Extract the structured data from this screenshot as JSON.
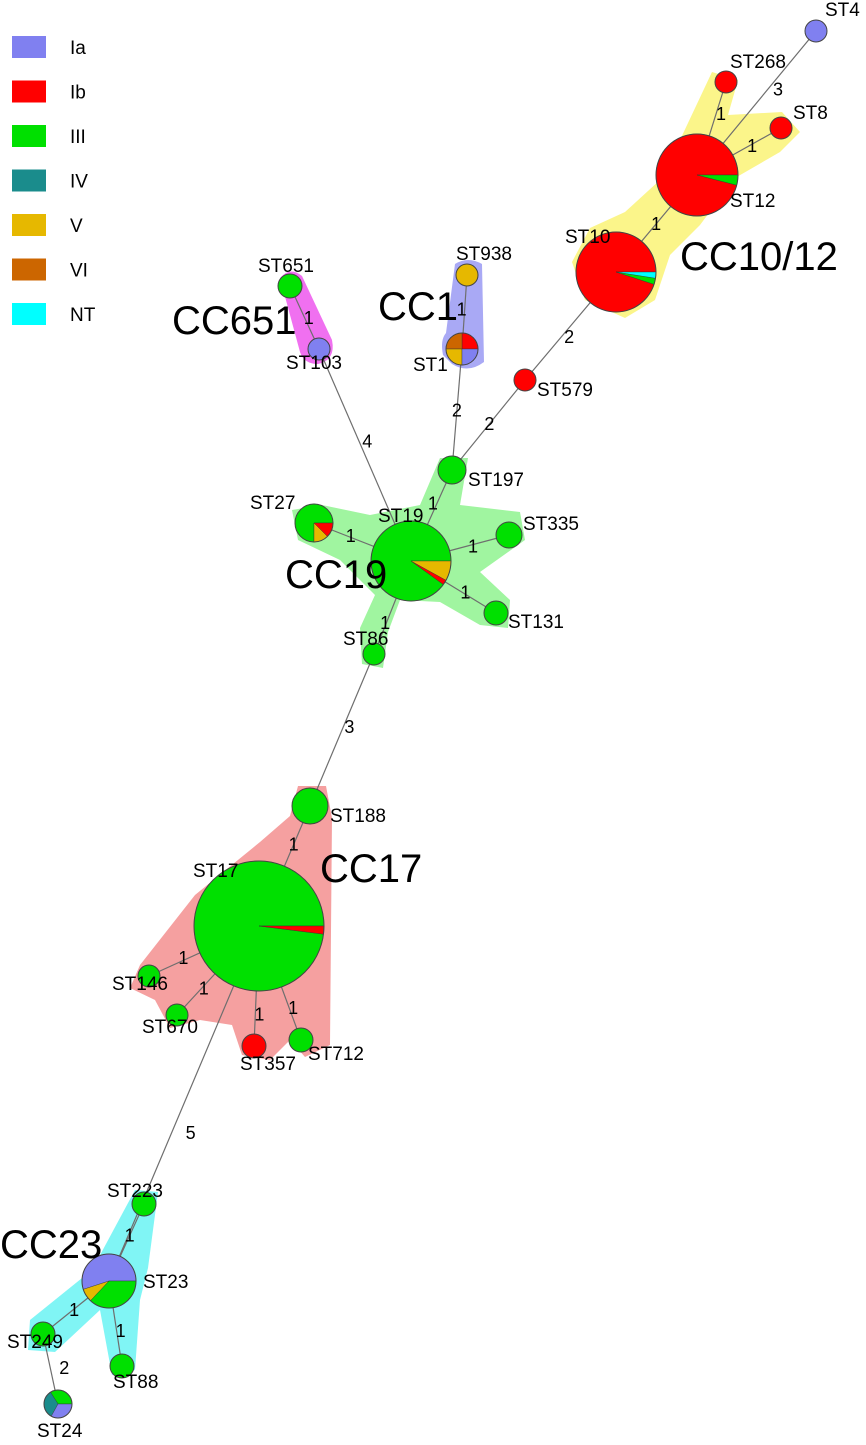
{
  "colors": {
    "Ia": "#8080f0",
    "Ib": "#ff0000",
    "III": "#00e000",
    "IV": "#1a8c8c",
    "V": "#e6b800",
    "VI": "#cc6600",
    "NT": "#00ffff",
    "hull_cc10_12": "#fbf58a",
    "hull_cc1": "#a9a9f5",
    "hull_cc651": "#f070f0",
    "hull_cc19": "#a0f5a0",
    "hull_cc17": "#f5a0a0",
    "hull_cc23": "#80f5f5"
  },
  "legend": {
    "items": [
      {
        "label": "Ia",
        "color": "#8080f0"
      },
      {
        "label": "Ib",
        "color": "#ff0000"
      },
      {
        "label": "III",
        "color": "#00e000"
      },
      {
        "label": "IV",
        "color": "#1a8c8c"
      },
      {
        "label": "V",
        "color": "#e6b800"
      },
      {
        "label": "VI",
        "color": "#cc6600"
      },
      {
        "label": "NT",
        "color": "#00ffff"
      }
    ]
  },
  "clonal_complexes": {
    "cc10_12": "CC10/12",
    "cc1": "CC1",
    "cc651": "CC651",
    "cc19": "CC19",
    "cc17": "CC17",
    "cc23": "CC23"
  },
  "sequence_types": {
    "st4": {
      "label": "ST4",
      "composition": [
        {
          "serotype": "Ia",
          "fraction": 1
        }
      ]
    },
    "st268": {
      "label": "ST268",
      "composition": [
        {
          "serotype": "Ib",
          "fraction": 1
        }
      ]
    },
    "st8": {
      "label": "ST8",
      "composition": [
        {
          "serotype": "Ib",
          "fraction": 1
        }
      ]
    },
    "st12": {
      "label": "ST12",
      "composition": [
        {
          "serotype": "Ib",
          "fraction": 0.96
        },
        {
          "serotype": "III",
          "fraction": 0.04
        }
      ]
    },
    "st10": {
      "label": "ST10",
      "composition": [
        {
          "serotype": "Ib",
          "fraction": 0.95
        },
        {
          "serotype": "III",
          "fraction": 0.025
        },
        {
          "serotype": "NT",
          "fraction": 0.025
        }
      ]
    },
    "st938": {
      "label": "ST938",
      "composition": [
        {
          "serotype": "V",
          "fraction": 1
        }
      ]
    },
    "st1": {
      "label": "ST1",
      "composition": [
        {
          "serotype": "Ib",
          "fraction": 0.25
        },
        {
          "serotype": "VI",
          "fraction": 0.25
        },
        {
          "serotype": "V",
          "fraction": 0.25
        },
        {
          "serotype": "Ia",
          "fraction": 0.25
        }
      ]
    },
    "st651": {
      "label": "ST651",
      "composition": [
        {
          "serotype": "III",
          "fraction": 1
        }
      ]
    },
    "st103": {
      "label": "ST103",
      "composition": [
        {
          "serotype": "Ia",
          "fraction": 1
        }
      ]
    },
    "st579": {
      "label": "ST579",
      "composition": [
        {
          "serotype": "Ib",
          "fraction": 1
        }
      ]
    },
    "st197": {
      "label": "ST197",
      "composition": [
        {
          "serotype": "III",
          "fraction": 1
        }
      ]
    },
    "st27": {
      "label": "ST27",
      "composition": [
        {
          "serotype": "III",
          "fraction": 0.75
        },
        {
          "serotype": "V",
          "fraction": 0.125
        },
        {
          "serotype": "Ib",
          "fraction": 0.125
        }
      ]
    },
    "st19": {
      "label": "ST19",
      "composition": [
        {
          "serotype": "III",
          "fraction": 0.9
        },
        {
          "serotype": "Ib",
          "fraction": 0.02
        },
        {
          "serotype": "V",
          "fraction": 0.08
        }
      ]
    },
    "st335": {
      "label": "ST335",
      "composition": [
        {
          "serotype": "III",
          "fraction": 1
        }
      ]
    },
    "st131": {
      "label": "ST131",
      "composition": [
        {
          "serotype": "III",
          "fraction": 1
        }
      ]
    },
    "st86": {
      "label": "ST86",
      "composition": [
        {
          "serotype": "III",
          "fraction": 1
        }
      ]
    },
    "st188": {
      "label": "ST188",
      "composition": [
        {
          "serotype": "III",
          "fraction": 1
        }
      ]
    },
    "st17": {
      "label": "ST17",
      "composition": [
        {
          "serotype": "III",
          "fraction": 0.98
        },
        {
          "serotype": "Ib",
          "fraction": 0.02
        }
      ]
    },
    "st146": {
      "label": "ST146",
      "composition": [
        {
          "serotype": "III",
          "fraction": 1
        }
      ]
    },
    "st670": {
      "label": "ST670",
      "composition": [
        {
          "serotype": "III",
          "fraction": 1
        }
      ]
    },
    "st357": {
      "label": "ST357",
      "composition": [
        {
          "serotype": "Ib",
          "fraction": 1
        }
      ]
    },
    "st712": {
      "label": "ST712",
      "composition": [
        {
          "serotype": "III",
          "fraction": 1
        }
      ]
    },
    "st223": {
      "label": "ST223",
      "composition": [
        {
          "serotype": "III",
          "fraction": 1
        }
      ]
    },
    "st23": {
      "label": "ST23",
      "composition": [
        {
          "serotype": "Ia",
          "fraction": 0.55
        },
        {
          "serotype": "V",
          "fraction": 0.08
        },
        {
          "serotype": "III",
          "fraction": 0.37
        }
      ]
    },
    "st249": {
      "label": "ST249",
      "composition": [
        {
          "serotype": "III",
          "fraction": 1
        }
      ]
    },
    "st88": {
      "label": "ST88",
      "composition": [
        {
          "serotype": "III",
          "fraction": 1
        }
      ]
    },
    "st24": {
      "label": "ST24",
      "composition": [
        {
          "serotype": "III",
          "fraction": 0.34
        },
        {
          "serotype": "IV",
          "fraction": 0.33
        },
        {
          "serotype": "Ia",
          "fraction": 0.33
        }
      ]
    }
  },
  "edges": [
    {
      "from": "st4",
      "to": "st12",
      "distance": "3"
    },
    {
      "from": "st268",
      "to": "st12",
      "distance": "1"
    },
    {
      "from": "st8",
      "to": "st12",
      "distance": "1"
    },
    {
      "from": "st12",
      "to": "st10",
      "distance": "1"
    },
    {
      "from": "st10",
      "to": "st579",
      "distance": "2"
    },
    {
      "from": "st579",
      "to": "st197",
      "distance": "2"
    },
    {
      "from": "st938",
      "to": "st1",
      "distance": "1"
    },
    {
      "from": "st1",
      "to": "st197",
      "distance": "2"
    },
    {
      "from": "st651",
      "to": "st103",
      "distance": "1"
    },
    {
      "from": "st103",
      "to": "st19",
      "distance": "4"
    },
    {
      "from": "st197",
      "to": "st19",
      "distance": "1"
    },
    {
      "from": "st27",
      "to": "st19",
      "distance": "1"
    },
    {
      "from": "st335",
      "to": "st19",
      "distance": "1"
    },
    {
      "from": "st131",
      "to": "st19",
      "distance": "1"
    },
    {
      "from": "st86",
      "to": "st19",
      "distance": "1"
    },
    {
      "from": "st86",
      "to": "st188",
      "distance": "3"
    },
    {
      "from": "st188",
      "to": "st17",
      "distance": "1"
    },
    {
      "from": "st146",
      "to": "st17",
      "distance": "1"
    },
    {
      "from": "st670",
      "to": "st17",
      "distance": "1"
    },
    {
      "from": "st357",
      "to": "st17",
      "distance": "1"
    },
    {
      "from": "st712",
      "to": "st17",
      "distance": "1"
    },
    {
      "from": "st17",
      "to": "st23",
      "distance": "5"
    },
    {
      "from": "st223",
      "to": "st23",
      "distance": "1"
    },
    {
      "from": "st249",
      "to": "st23",
      "distance": "1"
    },
    {
      "from": "st88",
      "to": "st23",
      "distance": "1"
    },
    {
      "from": "st249",
      "to": "st24",
      "distance": "2"
    }
  ]
}
